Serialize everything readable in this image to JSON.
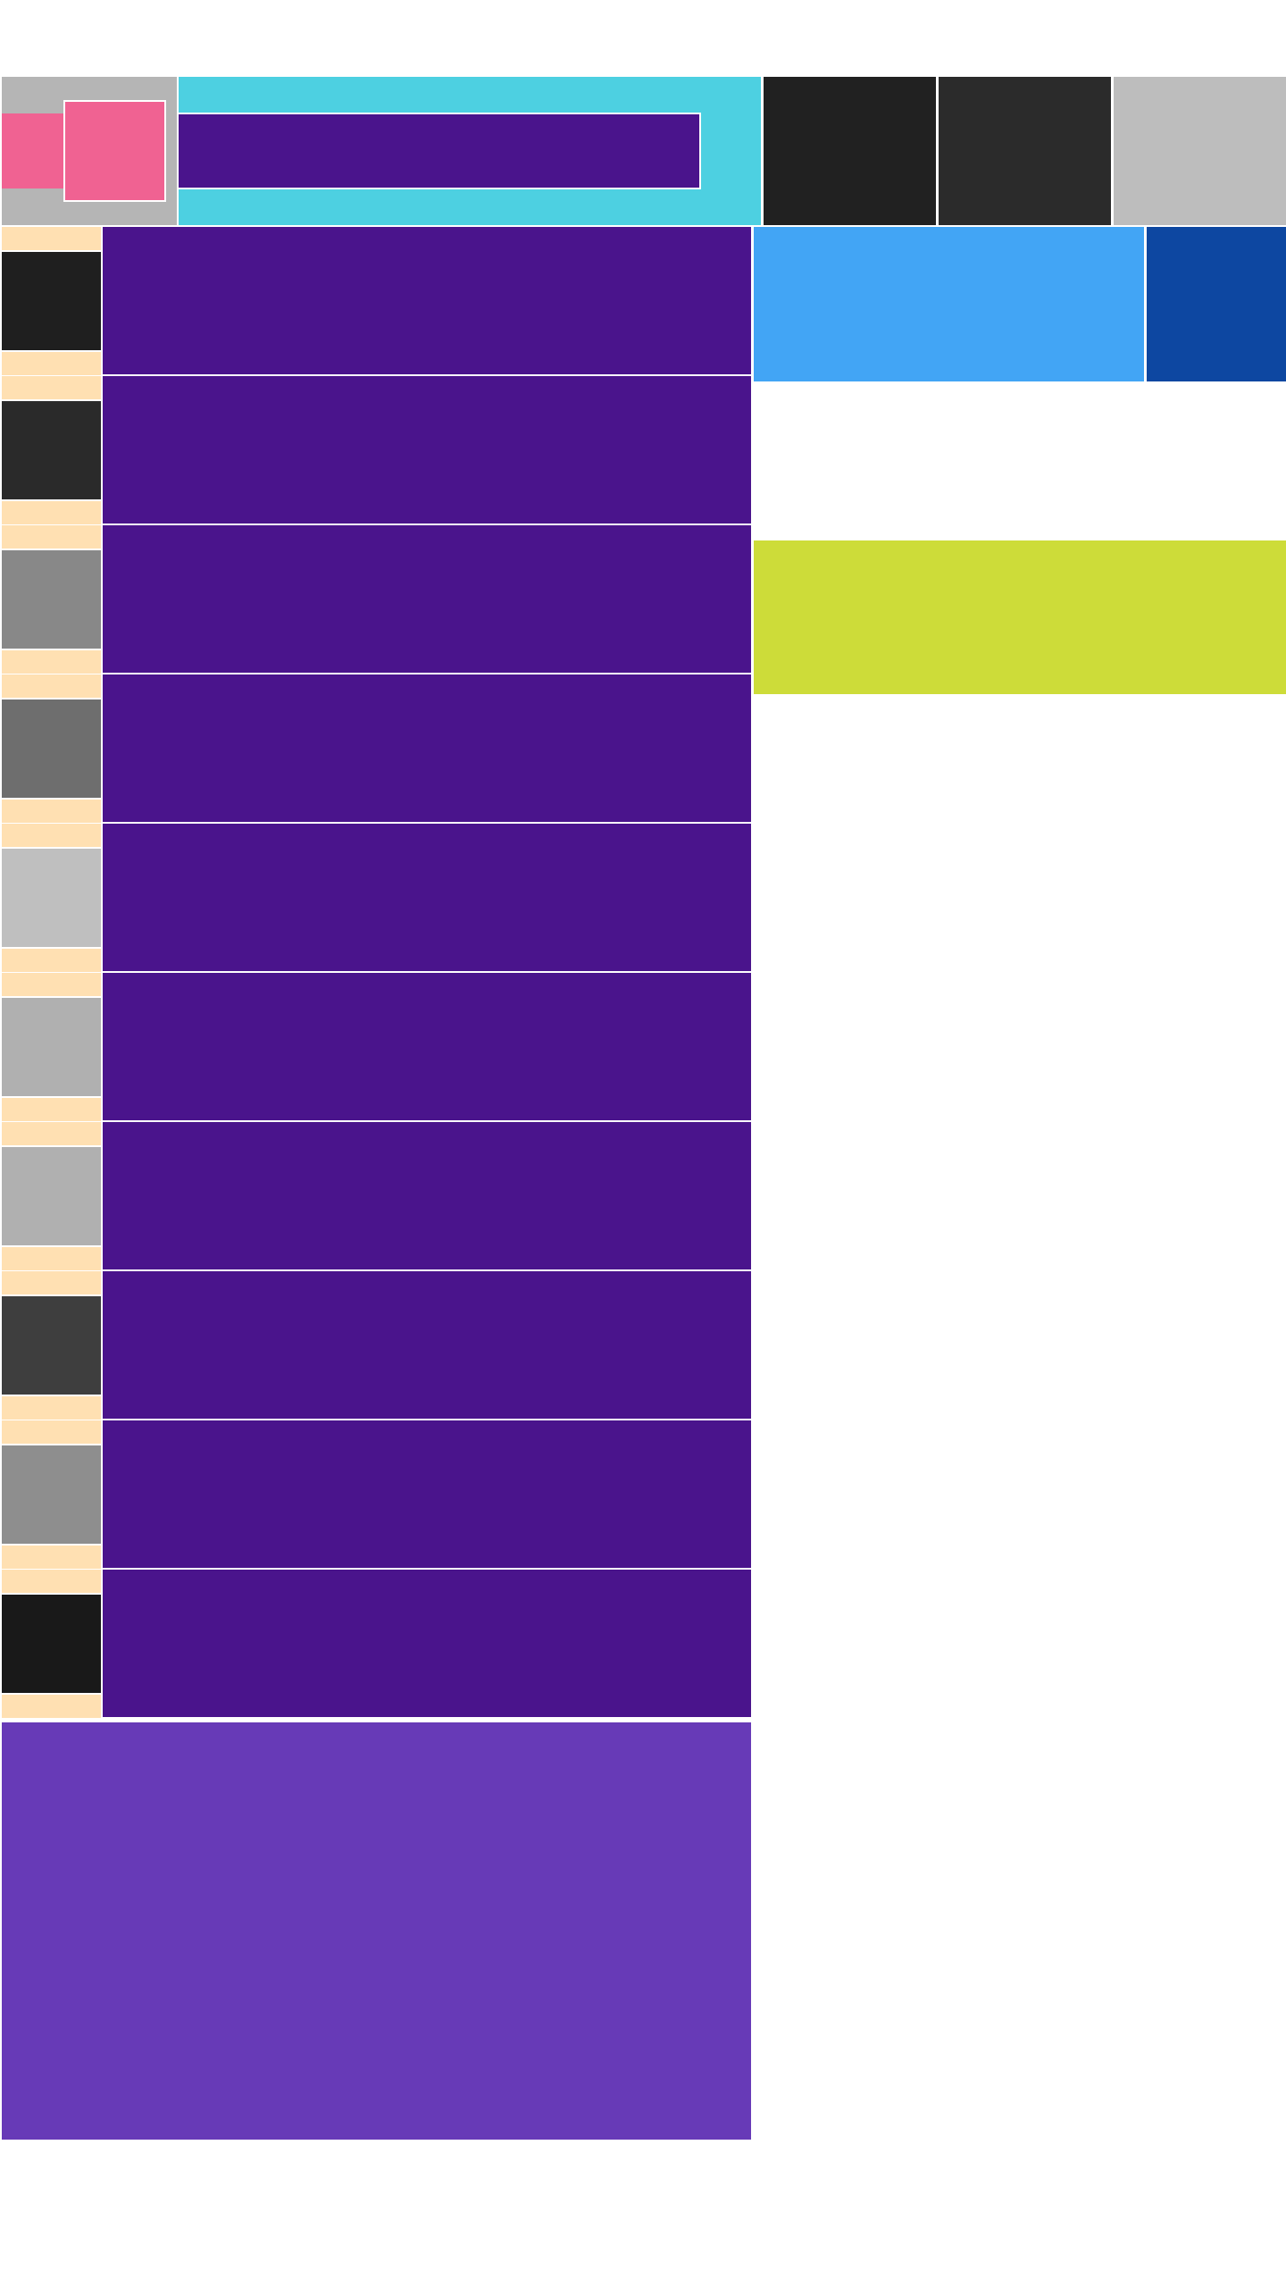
{
  "colors": {
    "header_logo_bg": "#b5b5b5",
    "logo_pink": "#f06292",
    "search_bg": "#4dd0e1",
    "search_input_bg": "#4a148c",
    "header_tiles": [
      "#212121",
      "#2b2b2b",
      "#bdbdbd"
    ],
    "row_label_bg": "#ffe0b2",
    "row_body_bg": "#4a148c",
    "footer_panel_bg": "#673ab7",
    "side_tile_primary": "#42a5f5",
    "side_tile_secondary": "#0d47a1",
    "side_banner": "#cddc39"
  },
  "rows": [
    {
      "thumb_color": "#1f1f1f"
    },
    {
      "thumb_color": "#2a2a2a"
    },
    {
      "thumb_color": "#888888"
    },
    {
      "thumb_color": "#6e6e6e"
    },
    {
      "thumb_color": "#bfbfbf"
    },
    {
      "thumb_color": "#b0b0b0"
    },
    {
      "thumb_color": "#b0b0b0"
    },
    {
      "thumb_color": "#3e3e3e"
    },
    {
      "thumb_color": "#8e8e8e"
    },
    {
      "thumb_color": "#191919"
    }
  ]
}
